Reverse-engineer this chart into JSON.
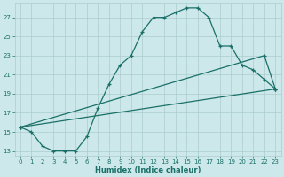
{
  "xlabel": "Humidex (Indice chaleur)",
  "bg_color": "#cce8ea",
  "grid_color": "#aacccc",
  "line_color": "#1a7068",
  "xlim": [
    -0.5,
    23.5
  ],
  "ylim": [
    12.5,
    28.5
  ],
  "yticks": [
    13,
    15,
    17,
    19,
    21,
    23,
    25,
    27
  ],
  "xticks": [
    0,
    1,
    2,
    3,
    4,
    5,
    6,
    7,
    8,
    9,
    10,
    11,
    12,
    13,
    14,
    15,
    16,
    17,
    18,
    19,
    20,
    21,
    22,
    23
  ],
  "line1_x": [
    0,
    1,
    2,
    3,
    4,
    5,
    6,
    7,
    8,
    9,
    10,
    11,
    12,
    13,
    14,
    15,
    16,
    17,
    18,
    19,
    20,
    21,
    22,
    23
  ],
  "line1_y": [
    15.5,
    15.0,
    13.5,
    13.0,
    13.0,
    13.0,
    14.5,
    17.5,
    20.0,
    22.0,
    23.0,
    25.5,
    27.0,
    27.0,
    27.5,
    28.0,
    28.0,
    27.0,
    24.0,
    24.0,
    22.0,
    21.5,
    20.5,
    19.5
  ],
  "line2_x": [
    0,
    22,
    23
  ],
  "line2_y": [
    15.5,
    23.0,
    19.5
  ],
  "line3_x": [
    0,
    23
  ],
  "line3_y": [
    15.5,
    19.5
  ]
}
